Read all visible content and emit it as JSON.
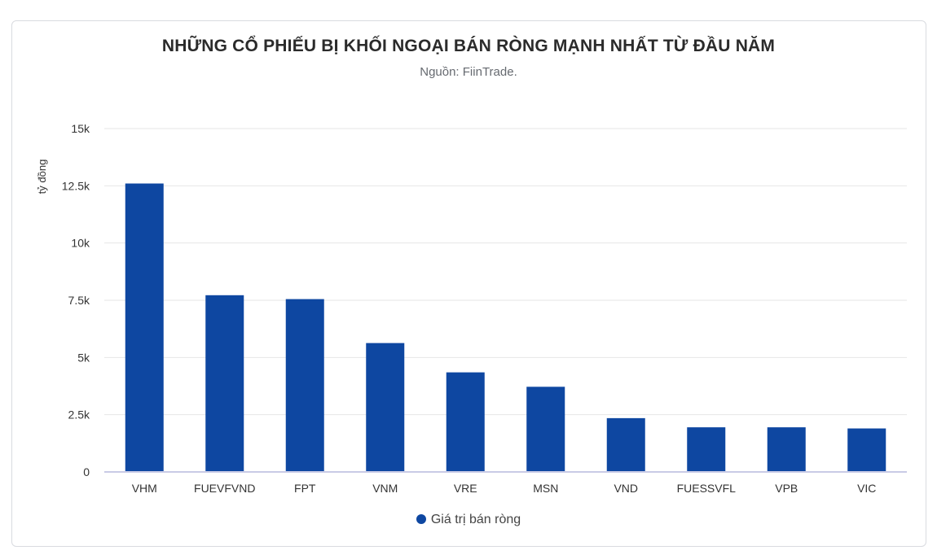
{
  "chart_data": {
    "type": "bar",
    "title": "NHỮNG CỔ PHIẾU BỊ KHỐI NGOẠI BÁN RÒNG MẠNH NHẤT TỪ ĐẦU NĂM",
    "subtitle": "Nguồn: FiinTrade.",
    "ylabel": "tỷ đồng",
    "xlabel": "",
    "ylim": [
      0,
      15000
    ],
    "yticks": [
      0,
      2500,
      5000,
      7500,
      10000,
      12500,
      15000
    ],
    "ytick_labels": [
      "0",
      "2.5k",
      "5k",
      "7.5k",
      "10k",
      "12.5k",
      "15k"
    ],
    "grid": true,
    "legend_position": "bottom",
    "categories": [
      "VHM",
      "FUEVFVND",
      "FPT",
      "VNM",
      "VRE",
      "MSN",
      "VND",
      "FUESSVFL",
      "VPB",
      "VIC"
    ],
    "series": [
      {
        "name": "Giá trị bán ròng",
        "color": "#0e47a1",
        "values": [
          12600,
          7720,
          7550,
          5630,
          4350,
          3720,
          2350,
          1950,
          1950,
          1900
        ]
      }
    ]
  }
}
